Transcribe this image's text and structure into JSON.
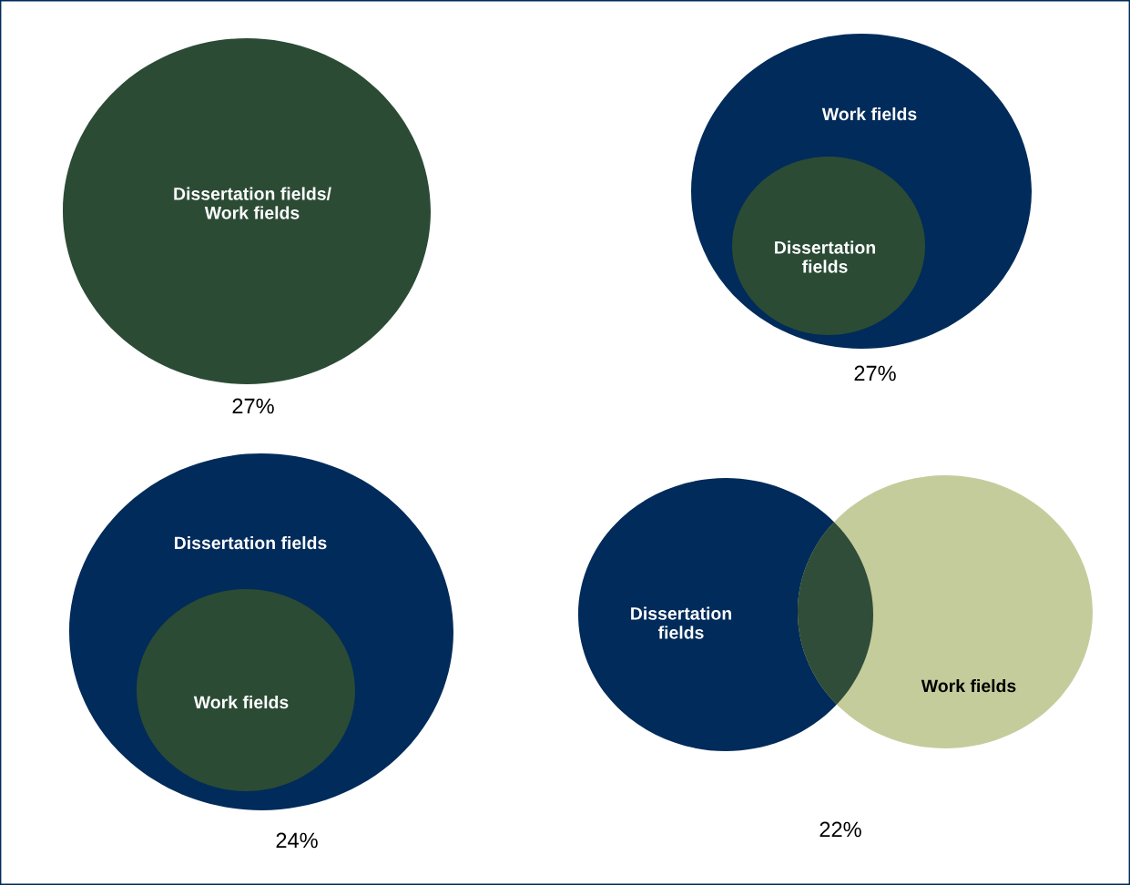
{
  "chart_data": [
    {
      "type": "other",
      "categories": [
        null
      ],
      "values": [
        27
      ],
      "value_labels": [
        "27%"
      ],
      "annotations": [
        "Dissertation fields/\nWork fields"
      ]
    },
    {
      "type": "other",
      "categories": [
        null
      ],
      "values": [
        27
      ],
      "value_labels": [
        "27%"
      ],
      "annotations": [
        "Work fields",
        "Dissertation\nfields"
      ]
    },
    {
      "type": "other",
      "categories": [
        null
      ],
      "values": [
        24
      ],
      "value_labels": [
        "24%"
      ],
      "annotations": [
        "Dissertation fields",
        "Work fields"
      ]
    },
    {
      "type": "other",
      "categories": [
        null
      ],
      "values": [
        22
      ],
      "value_labels": [
        "22%"
      ],
      "annotations": [
        "Dissertation\nfields",
        "Work fields"
      ]
    }
  ]
}
